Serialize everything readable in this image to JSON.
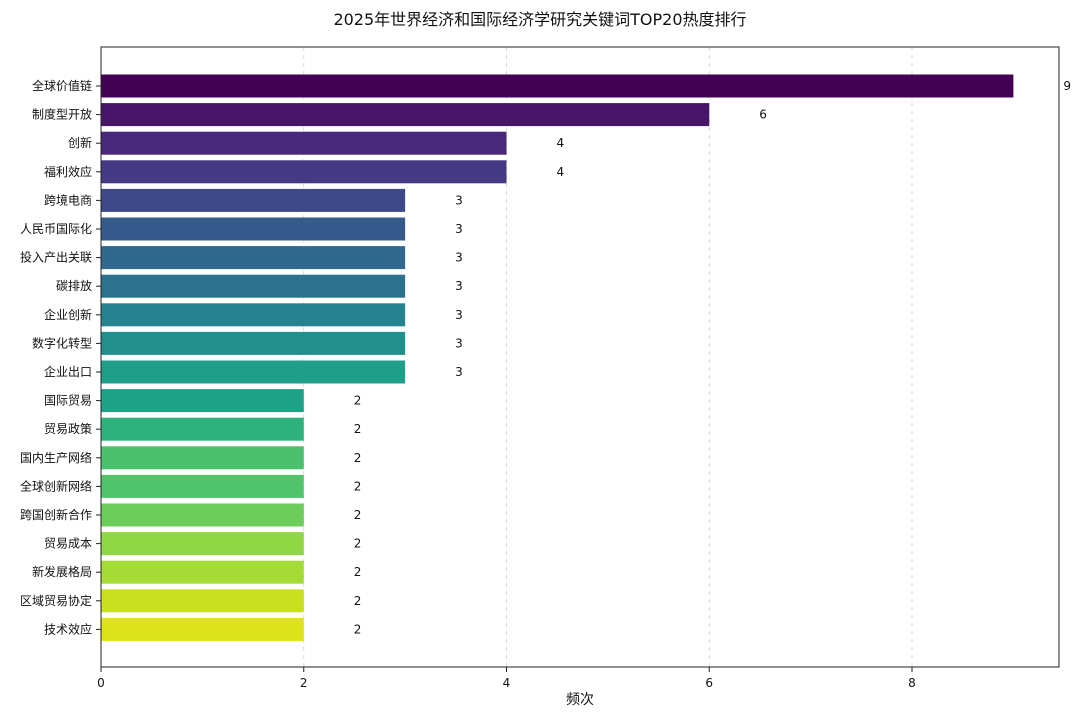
{
  "chart_data": {
    "type": "bar",
    "orientation": "horizontal",
    "title": "2025年世界经济和国际经济学研究关键词TOP20热度排行",
    "xlabel": "频次",
    "ylabel": "",
    "xlim": [
      0,
      9.45
    ],
    "xticks": [
      0,
      2,
      4,
      6,
      8
    ],
    "grid": "x-dashed",
    "colormap": "viridis",
    "categories": [
      "全球价值链",
      "制度型开放",
      "创新",
      "福利效应",
      "跨境电商",
      "人民币国际化",
      "投入产出关联",
      "碳排放",
      "企业创新",
      "数字化转型",
      "企业出口",
      "国际贸易",
      "贸易政策",
      "国内生产网络",
      "全球创新网络",
      "跨国创新合作",
      "贸易成本",
      "新发展格局",
      "区域贸易协定",
      "技术效应"
    ],
    "values": [
      9,
      6,
      4,
      4,
      3,
      3,
      3,
      3,
      3,
      3,
      3,
      2,
      2,
      2,
      2,
      2,
      2,
      2,
      2,
      2
    ],
    "colors": [
      "#440154",
      "#481668",
      "#482878",
      "#443983",
      "#3e4989",
      "#375a8c",
      "#31688e",
      "#2c728e",
      "#26828e",
      "#21908d",
      "#1f9e89",
      "#1fa187",
      "#2db27d",
      "#4ac16d",
      "#4fc46a",
      "#6ccd5a",
      "#8fd744",
      "#a5db36",
      "#c8e020",
      "#dde318"
    ]
  }
}
